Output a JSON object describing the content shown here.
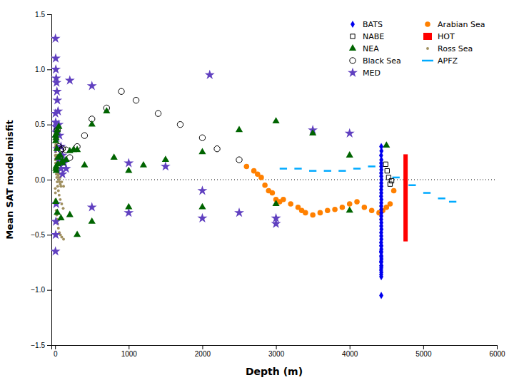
{
  "chart_data": {
    "type": "scatter",
    "xlabel": "Depth (m)",
    "ylabel": "Mean SAT model misfit",
    "xlim": [
      -50,
      6000
    ],
    "ylim": [
      -1.5,
      1.5
    ],
    "xticks": [
      0,
      1000,
      2000,
      3000,
      4000,
      5000,
      6000
    ],
    "yticks": [
      {
        "value": -1.5,
        "label": "−1.5"
      },
      {
        "value": -1.0,
        "label": "−1.0"
      },
      {
        "value": -0.5,
        "label": "−0.5"
      },
      {
        "value": 0.0,
        "label": "0.0"
      },
      0.5,
      {
        "value": 1.0,
        "label": "1.0"
      },
      1.5
    ],
    "hlines": [
      0
    ],
    "legend": "upper right",
    "series": [
      {
        "name": "BATS",
        "type": "scatter",
        "marker": "diamond",
        "color": "#0000ee",
        "x": [
          4430,
          4432,
          4428,
          4431,
          4429,
          4430,
          4431,
          4429,
          4430,
          4432,
          4430,
          4431,
          4429,
          4430,
          4428,
          4431,
          4430,
          4429,
          4430,
          4431,
          4430,
          4429,
          4431,
          4430,
          4432,
          4429,
          4430,
          4431,
          4428,
          4430,
          4431,
          4429,
          4430,
          4432,
          4429,
          4431,
          4430,
          4428,
          4431,
          4429,
          4430,
          4431,
          4429,
          4430,
          4428,
          4430,
          4430
        ],
        "values": [
          0.3,
          0.26,
          0.22,
          0.18,
          0.15,
          0.12,
          0.09,
          0.06,
          0.03,
          0.0,
          -0.03,
          -0.06,
          -0.09,
          -0.12,
          -0.15,
          -0.18,
          -0.21,
          -0.24,
          -0.27,
          -0.3,
          -0.33,
          -0.36,
          -0.39,
          -0.42,
          -0.45,
          -0.48,
          -0.51,
          -0.54,
          -0.57,
          -0.6,
          -0.63,
          -0.66,
          -0.69,
          -0.72,
          -0.75,
          -0.78,
          -0.8,
          -0.82,
          -0.84,
          -0.86,
          -0.88,
          -0.78,
          -0.74,
          -0.7,
          -0.65,
          -0.6,
          -1.05
        ]
      },
      {
        "name": "NABE",
        "type": "scatter",
        "marker": "square-open",
        "color": "#000000",
        "x": [
          4490,
          4510,
          4530,
          4550,
          4570
        ],
        "values": [
          0.14,
          0.08,
          0.02,
          -0.04,
          -0.01
        ]
      },
      {
        "name": "NEA",
        "type": "scatter",
        "marker": "triangle-up",
        "color": "#006400",
        "x": [
          5,
          8,
          10,
          12,
          15,
          20,
          25,
          30,
          40,
          50,
          70,
          100,
          150,
          200,
          250,
          300,
          400,
          500,
          700,
          800,
          1000,
          1200,
          1500,
          2000,
          2500,
          3000,
          3500,
          4000,
          4500,
          10,
          30,
          80,
          200,
          500,
          1000,
          2000,
          3000,
          4000,
          15,
          40,
          100,
          300
        ],
        "values": [
          0.4,
          0.35,
          0.1,
          0.38,
          0.12,
          0.42,
          0.28,
          0.45,
          0.2,
          0.48,
          0.22,
          0.15,
          0.18,
          0.26,
          0.27,
          0.27,
          0.13,
          0.5,
          0.62,
          0.2,
          0.08,
          0.13,
          0.18,
          0.25,
          0.45,
          0.53,
          0.42,
          -0.28,
          0.31,
          -0.2,
          -0.3,
          -0.35,
          -0.32,
          -0.38,
          -0.25,
          -0.25,
          -0.22,
          0.22,
          0.08,
          0.14,
          0.17,
          -0.5
        ]
      },
      {
        "name": "Black Sea",
        "type": "scatter",
        "marker": "circle-open",
        "color": "#000000",
        "x": [
          30,
          50,
          80,
          100,
          150,
          200,
          300,
          400,
          500,
          700,
          900,
          1100,
          1400,
          1700,
          2000,
          2200,
          2500
        ],
        "values": [
          0.45,
          0.3,
          0.27,
          0.28,
          0.27,
          0.2,
          0.3,
          0.4,
          0.55,
          0.65,
          0.8,
          0.72,
          0.6,
          0.5,
          0.38,
          0.28,
          0.18
        ]
      },
      {
        "name": "MED",
        "type": "scatter",
        "marker": "star",
        "color": "#6040c0",
        "x": [
          5,
          8,
          10,
          15,
          20,
          25,
          30,
          40,
          50,
          60,
          80,
          100,
          120,
          150,
          5,
          8,
          10,
          15,
          20,
          30,
          50,
          80,
          100,
          5,
          8,
          10,
          15,
          200,
          500,
          1000,
          1500,
          2000,
          2100,
          2500,
          3000,
          3500,
          4000,
          500,
          1000,
          2000,
          3000
        ],
        "values": [
          1.28,
          1.1,
          1.0,
          0.92,
          0.88,
          0.8,
          0.72,
          0.62,
          0.5,
          0.4,
          0.3,
          0.22,
          0.15,
          0.1,
          0.6,
          0.52,
          0.48,
          0.43,
          0.38,
          0.28,
          0.18,
          0.1,
          0.05,
          -0.65,
          -0.5,
          -0.38,
          -0.22,
          0.9,
          0.85,
          0.15,
          0.12,
          -0.1,
          0.95,
          -0.3,
          -0.35,
          0.45,
          0.42,
          -0.25,
          -0.3,
          -0.35,
          -0.4
        ]
      },
      {
        "name": "Arabian Sea",
        "type": "scatter",
        "marker": "circle",
        "color": "#ff8000",
        "x": [
          2600,
          2700,
          2750,
          2800,
          2850,
          2900,
          2950,
          3000,
          3050,
          3100,
          3200,
          3300,
          3350,
          3400,
          3500,
          3600,
          3700,
          3800,
          3900,
          4000,
          4100,
          4200,
          4300,
          4400,
          4450,
          4500,
          4550,
          4600
        ],
        "values": [
          0.12,
          0.08,
          0.05,
          0.02,
          -0.05,
          -0.1,
          -0.12,
          -0.18,
          -0.2,
          -0.18,
          -0.22,
          -0.25,
          -0.28,
          -0.3,
          -0.32,
          -0.3,
          -0.28,
          -0.27,
          -0.25,
          -0.22,
          -0.2,
          -0.25,
          -0.28,
          -0.3,
          -0.28,
          -0.25,
          -0.22,
          -0.1
        ]
      },
      {
        "name": "HOT",
        "type": "range",
        "color": "#ff0000",
        "x": [
          4760
        ],
        "low": [
          -0.56
        ],
        "high": [
          0.23
        ]
      },
      {
        "name": "Ross Sea",
        "type": "scatter",
        "marker": "point",
        "color": "#a09060",
        "x": [
          3,
          5,
          6,
          8,
          10,
          12,
          15,
          18,
          20,
          25,
          30,
          35,
          40,
          45,
          50,
          60,
          70,
          80,
          3,
          5,
          7,
          10,
          14,
          18,
          22,
          28,
          35,
          45,
          55,
          70,
          90,
          110,
          3,
          5,
          8,
          12,
          16,
          22,
          28,
          36,
          45,
          58,
          72,
          90,
          115,
          3,
          6,
          10,
          15,
          22,
          30,
          40,
          55,
          70,
          90,
          115
        ],
        "values": [
          0.35,
          0.3,
          0.28,
          0.25,
          0.22,
          0.2,
          0.18,
          0.15,
          0.12,
          0.1,
          0.08,
          0.06,
          0.04,
          0.02,
          0.0,
          -0.02,
          -0.04,
          -0.06,
          0.22,
          0.18,
          0.15,
          0.12,
          0.08,
          0.05,
          0.02,
          -0.02,
          -0.06,
          -0.1,
          -0.14,
          -0.18,
          -0.22,
          -0.26,
          -0.08,
          -0.12,
          -0.18,
          -0.22,
          -0.28,
          -0.32,
          -0.36,
          -0.4,
          -0.44,
          -0.48,
          -0.5,
          -0.52,
          -0.54,
          0.42,
          0.38,
          0.32,
          0.28,
          0.22,
          0.16,
          0.1,
          0.05,
          0.02,
          -0.02,
          -0.06
        ]
      },
      {
        "name": "APFZ",
        "type": "segments",
        "color": "#00aaff",
        "x_start": [
          3050,
          3250,
          3450,
          3650,
          3850,
          4050,
          4250,
          4580,
          4800,
          5000,
          5200,
          5350
        ],
        "x_end": [
          3150,
          3350,
          3550,
          3750,
          3950,
          4150,
          4350,
          4680,
          4900,
          5100,
          5300,
          5450
        ],
        "values": [
          0.1,
          0.1,
          0.08,
          0.08,
          0.08,
          0.1,
          0.12,
          0.02,
          -0.05,
          -0.12,
          -0.17,
          -0.2
        ]
      }
    ]
  }
}
